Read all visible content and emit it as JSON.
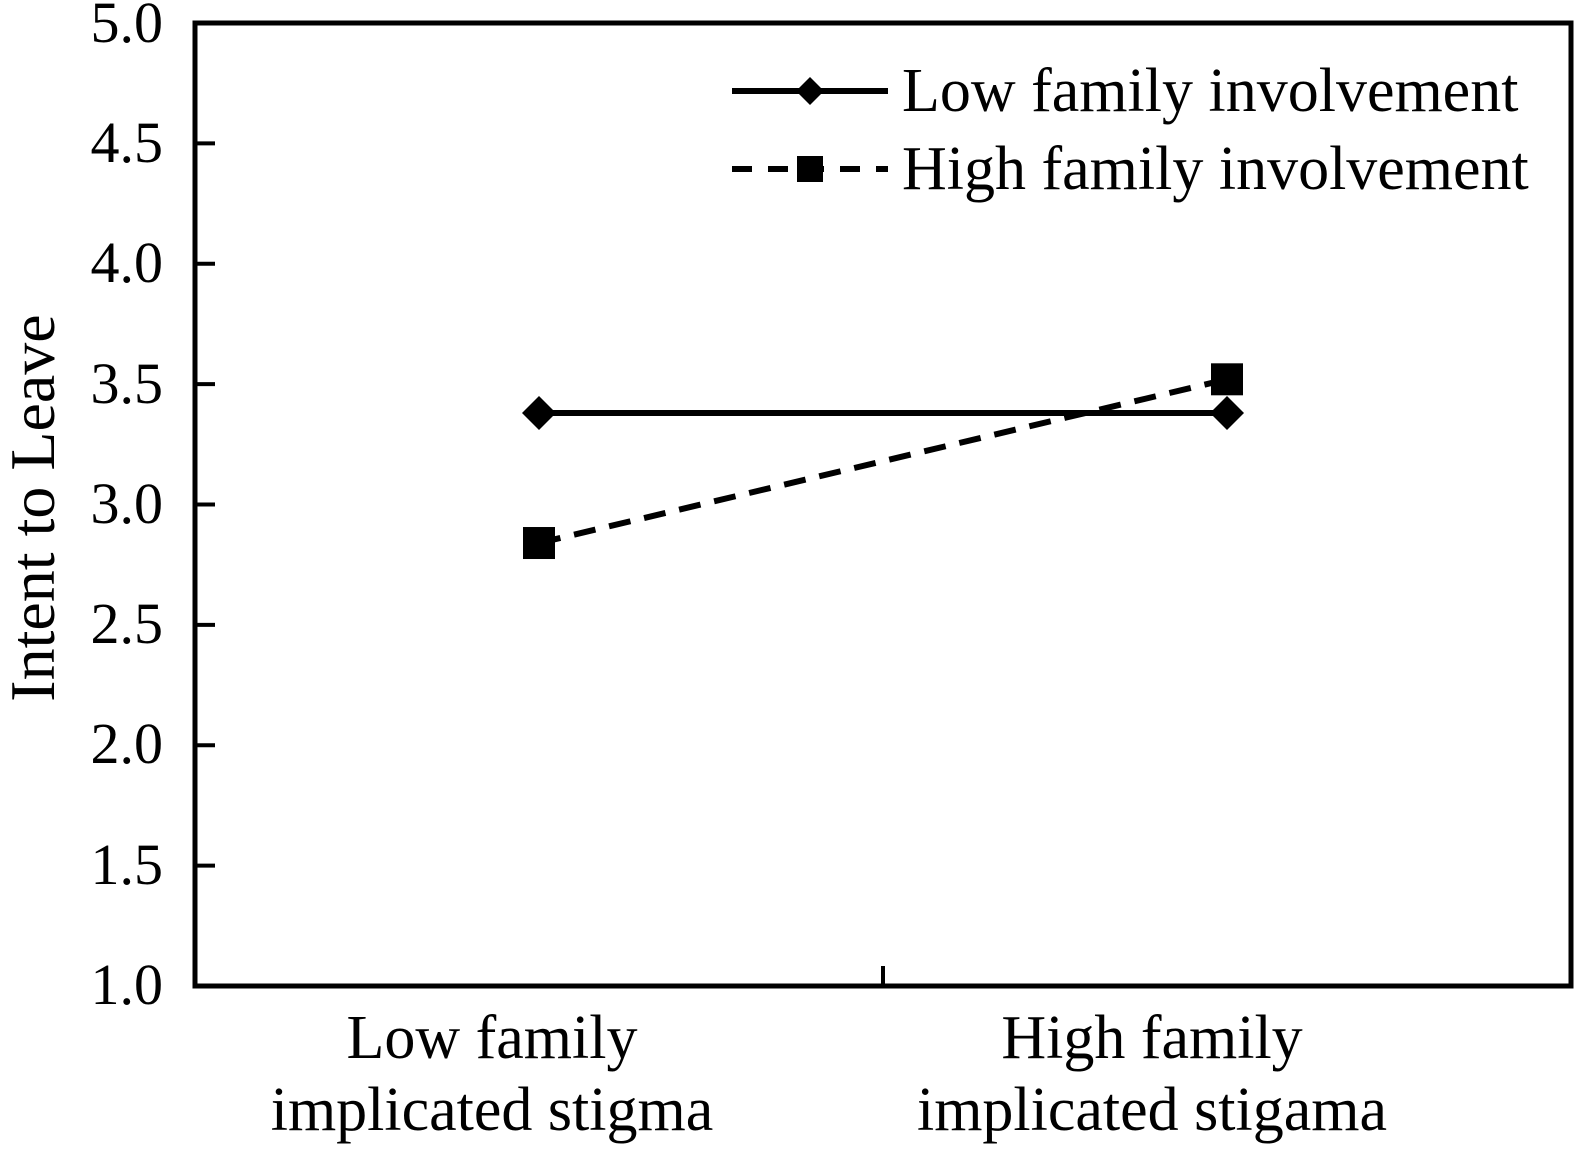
{
  "chart_data": {
    "type": "line",
    "title": "",
    "xlabel": "",
    "ylabel": "Intent to Leave",
    "ylim": [
      1.0,
      5.0
    ],
    "y_tick_step": 0.5,
    "y_tick_labels": [
      "5.0",
      "4.5",
      "4.0",
      "3.5",
      "3.0",
      "2.5",
      "2.0",
      "1.5",
      "1.0"
    ],
    "categories": [
      [
        "Low family",
        "implicated stigma"
      ],
      [
        "High family",
        "implicated stigama"
      ]
    ],
    "series": [
      {
        "name": "Low family involvement",
        "marker": "diamond",
        "line_style": "solid",
        "values": [
          3.38,
          3.38
        ]
      },
      {
        "name": "High family involvement",
        "marker": "square",
        "line_style": "dashed",
        "values": [
          2.84,
          3.52
        ]
      }
    ],
    "legend_position": "top-right-inside",
    "grid": false,
    "colors": {
      "foreground": "#000000",
      "background": "#ffffff"
    }
  }
}
